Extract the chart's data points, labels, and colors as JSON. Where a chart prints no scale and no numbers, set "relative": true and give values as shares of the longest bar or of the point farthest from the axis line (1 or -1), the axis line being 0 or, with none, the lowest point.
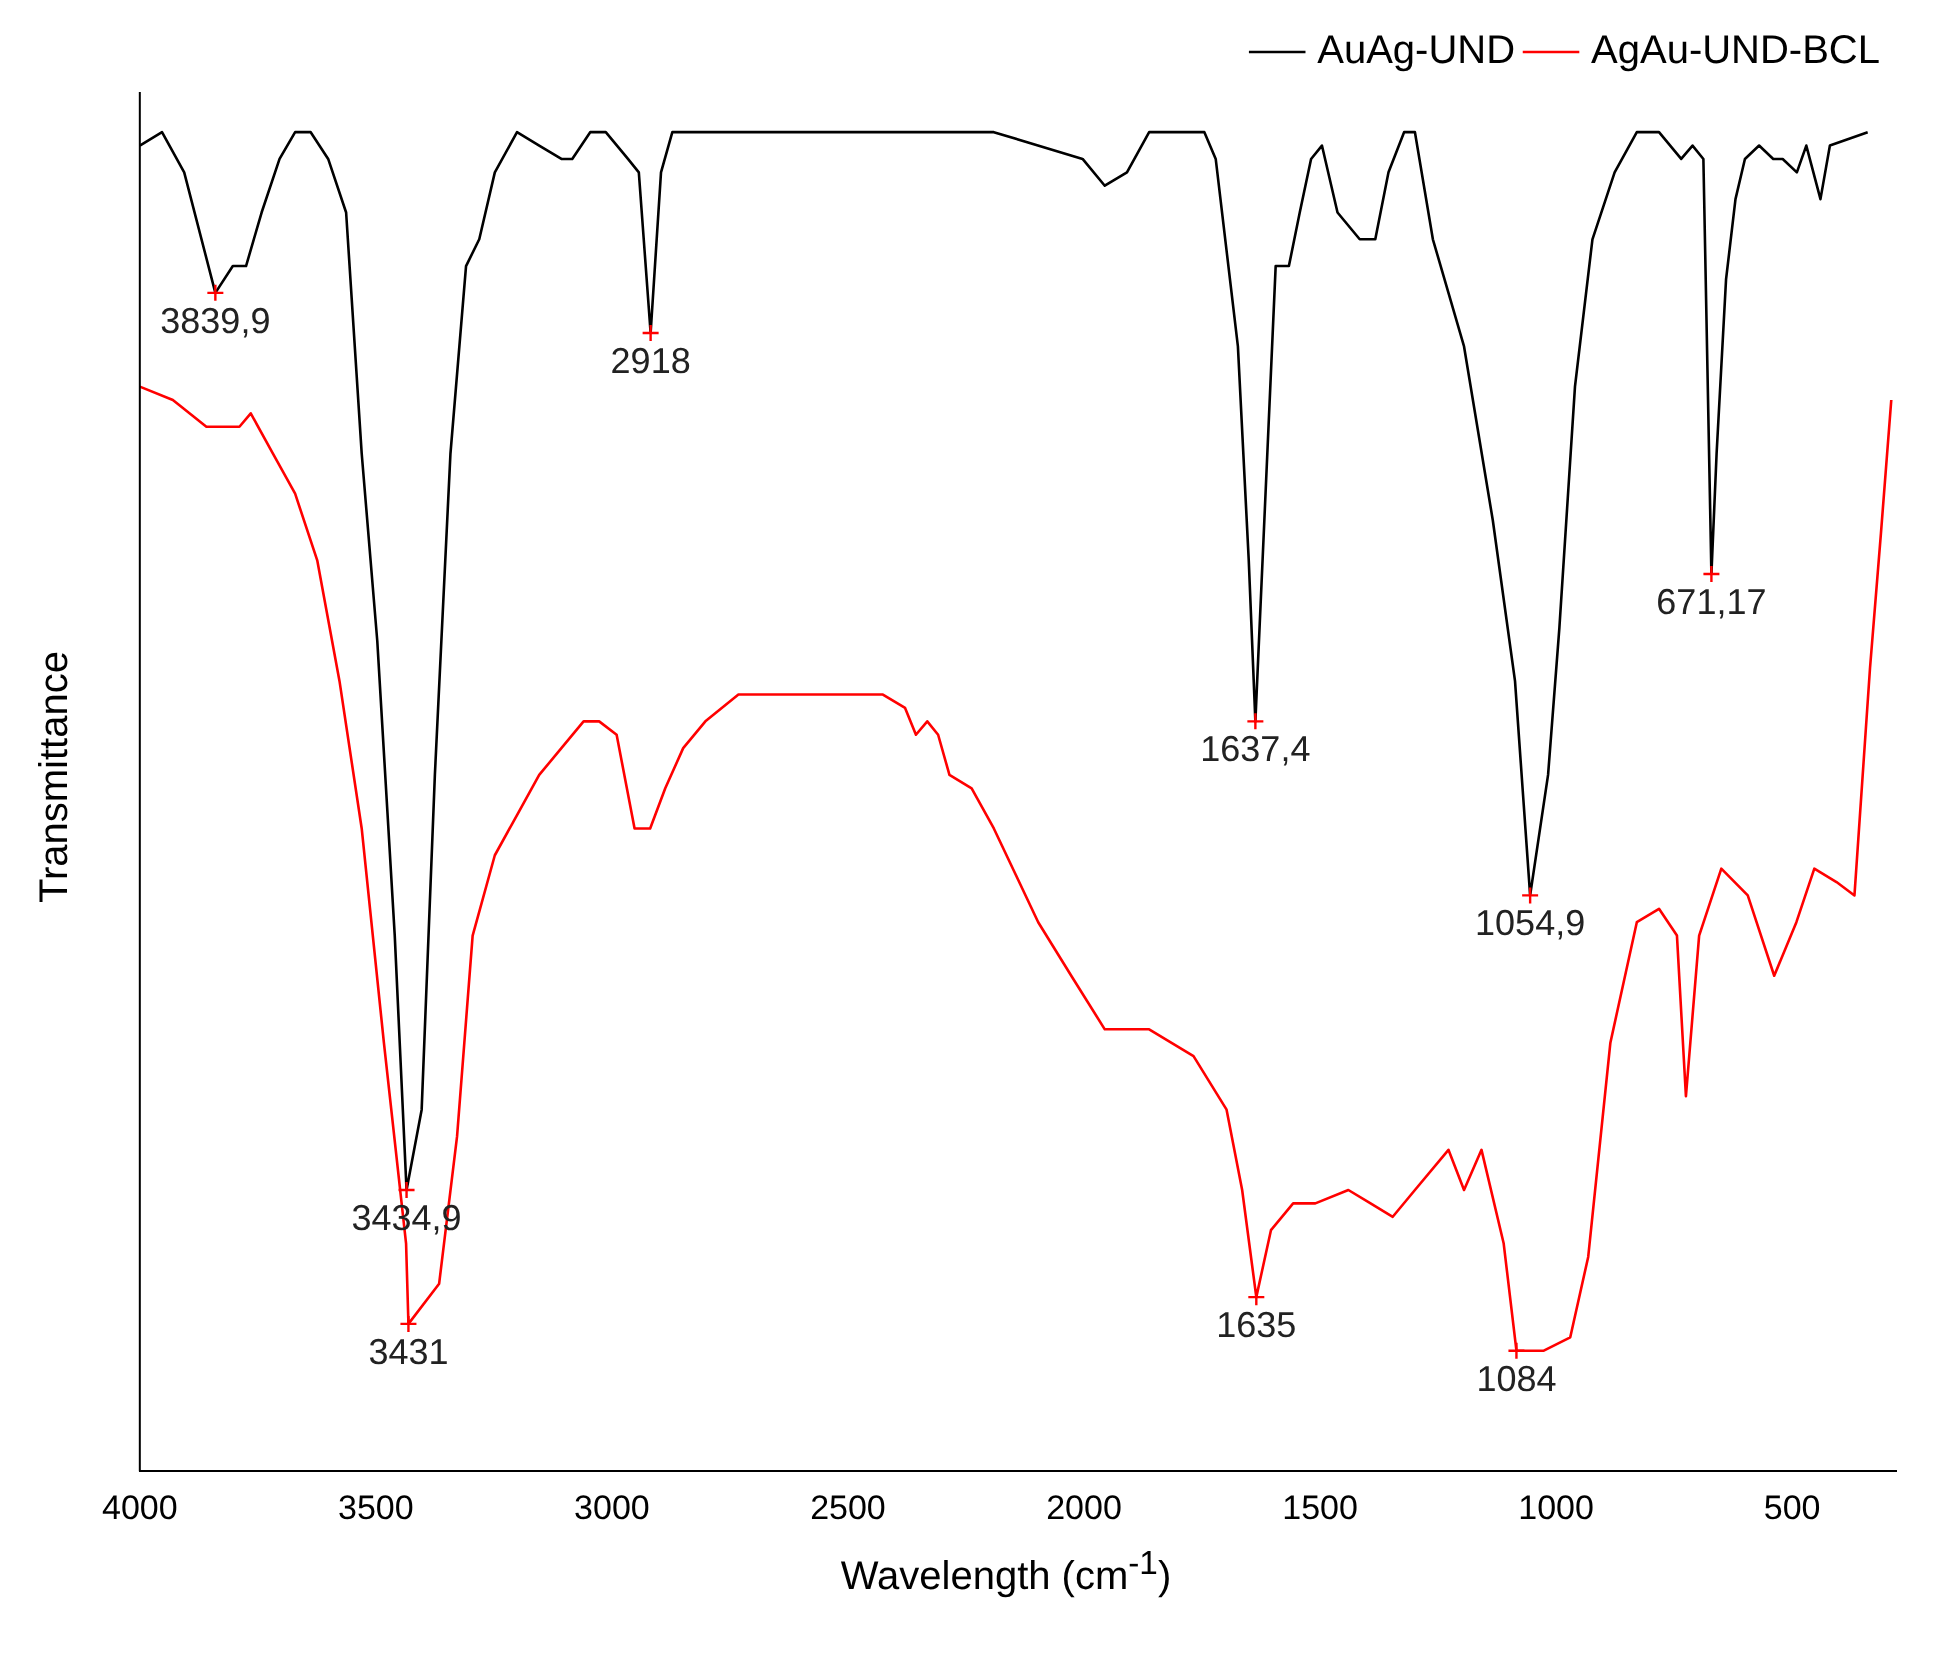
{
  "chart_data": {
    "type": "line",
    "relative": true,
    "xlabel": "Wavelength (cm$^{-1}$)",
    "ylabel": "Transmittance",
    "xlim": [
      4000,
      280
    ],
    "xticks": [
      4000,
      3500,
      3000,
      2500,
      2000,
      1500,
      1000,
      500
    ],
    "legend": "top right",
    "grid": false,
    "marker": "none",
    "line_style": "solid",
    "series": [
      {
        "name": "AuAg-UND",
        "color": "#000000",
        "x": [
          4000,
          3953,
          3906,
          3840,
          3803,
          3775,
          3742,
          3704,
          3671,
          3638,
          3601,
          3563,
          3530,
          3497,
          3460,
          3435,
          3403,
          3375,
          3342,
          3309,
          3281,
          3248,
          3201,
          3154,
          3107,
          3084,
          3046,
          3013,
          2966,
          2943,
          2918,
          2896,
          2872,
          2849,
          2661,
          2426,
          2191,
          2003,
          1956,
          1909,
          1862,
          1792,
          1745,
          1721,
          1674,
          1651,
          1637,
          1618,
          1594,
          1566,
          1543,
          1519,
          1496,
          1463,
          1416,
          1383,
          1355,
          1322,
          1299,
          1261,
          1195,
          1134,
          1087,
          1055,
          1017,
          993,
          960,
          923,
          876,
          829,
          782,
          735,
          711,
          688,
          671,
          660,
          640,
          620,
          600,
          570,
          540,
          520,
          490,
          470,
          440,
          420,
          340
        ],
        "values": [
          0.99,
          1.0,
          0.97,
          0.88,
          0.9,
          0.9,
          0.94,
          0.98,
          1.0,
          1.0,
          0.98,
          0.94,
          0.76,
          0.62,
          0.4,
          0.21,
          0.27,
          0.52,
          0.76,
          0.9,
          0.92,
          0.97,
          1.0,
          0.99,
          0.98,
          0.98,
          1.0,
          1.0,
          0.98,
          0.97,
          0.85,
          0.97,
          1.0,
          1.0,
          1.0,
          1.0,
          1.0,
          0.98,
          0.96,
          0.97,
          1.0,
          1.0,
          1.0,
          0.98,
          0.84,
          0.68,
          0.56,
          0.71,
          0.9,
          0.9,
          0.94,
          0.98,
          0.99,
          0.94,
          0.92,
          0.92,
          0.97,
          1.0,
          1.0,
          0.92,
          0.84,
          0.71,
          0.59,
          0.43,
          0.52,
          0.63,
          0.81,
          0.92,
          0.97,
          1.0,
          1.0,
          0.98,
          0.99,
          0.98,
          0.67,
          0.76,
          0.89,
          0.95,
          0.98,
          0.99,
          0.98,
          0.98,
          0.97,
          0.99,
          0.95,
          0.99,
          1.0
        ]
      },
      {
        "name": "AgAu-UND-BCL",
        "color": "#ff0000",
        "x": [
          4000,
          3930,
          3859,
          3789,
          3765,
          3718,
          3671,
          3624,
          3577,
          3530,
          3483,
          3436,
          3431,
          3366,
          3328,
          3295,
          3248,
          3201,
          3154,
          3107,
          3060,
          3027,
          2990,
          2952,
          2919,
          2887,
          2849,
          2802,
          2732,
          2661,
          2520,
          2426,
          2379,
          2356,
          2332,
          2309,
          2285,
          2238,
          2191,
          2097,
          2027,
          1956,
          1862,
          1768,
          1698,
          1665,
          1635,
          1604,
          1557,
          1510,
          1440,
          1393,
          1346,
          1299,
          1228,
          1195,
          1158,
          1111,
          1084,
          1026,
          970,
          932,
          885,
          829,
          782,
          744,
          725,
          697,
          650,
          594,
          538,
          491,
          453,
          406,
          368,
          335,
          312,
          290
        ],
        "values": [
          0.81,
          0.8,
          0.78,
          0.78,
          0.79,
          0.76,
          0.73,
          0.68,
          0.59,
          0.48,
          0.32,
          0.17,
          0.11,
          0.14,
          0.25,
          0.4,
          0.46,
          0.49,
          0.52,
          0.54,
          0.56,
          0.56,
          0.55,
          0.48,
          0.48,
          0.51,
          0.54,
          0.56,
          0.58,
          0.58,
          0.58,
          0.58,
          0.57,
          0.55,
          0.56,
          0.55,
          0.52,
          0.51,
          0.48,
          0.41,
          0.37,
          0.33,
          0.33,
          0.31,
          0.27,
          0.21,
          0.13,
          0.18,
          0.2,
          0.2,
          0.21,
          0.2,
          0.19,
          0.21,
          0.24,
          0.21,
          0.24,
          0.17,
          0.09,
          0.09,
          0.1,
          0.16,
          0.32,
          0.41,
          0.42,
          0.4,
          0.28,
          0.4,
          0.45,
          0.43,
          0.37,
          0.41,
          0.45,
          0.44,
          0.43,
          0.6,
          0.7,
          0.8
        ]
      }
    ],
    "annotations": [
      {
        "text": "3839,9",
        "x": 3840,
        "y": 0.88
      },
      {
        "text": "2918",
        "x": 2918,
        "y": 0.85
      },
      {
        "text": "3434,9",
        "x": 3435,
        "y": 0.21
      },
      {
        "text": "3431",
        "x": 3431,
        "y": 0.11
      },
      {
        "text": "1637,4",
        "x": 1637,
        "y": 0.56
      },
      {
        "text": "1054,9",
        "x": 1055,
        "y": 0.43
      },
      {
        "text": "671,17",
        "x": 671,
        "y": 0.67
      },
      {
        "text": "1635",
        "x": 1635,
        "y": 0.13
      },
      {
        "text": "1084",
        "x": 1084,
        "y": 0.09
      }
    ]
  }
}
